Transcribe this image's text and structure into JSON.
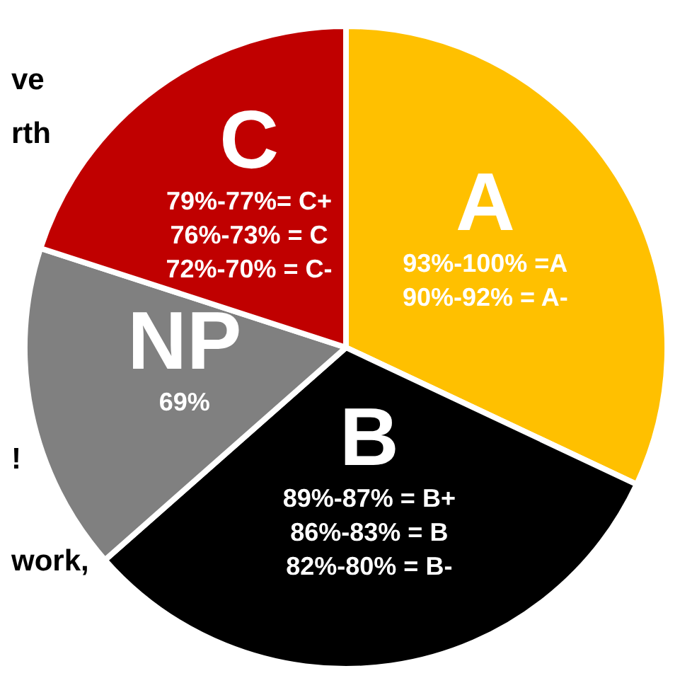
{
  "chart_data": {
    "type": "pie",
    "categories": [
      "A",
      "B",
      "NP",
      "C"
    ],
    "values": [
      32,
      31.5,
      16.5,
      20
    ],
    "colors": [
      "#ffc000",
      "#000000",
      "#808080",
      "#c00000"
    ],
    "annotations": [
      {
        "text": "93%-100% =A",
        "x": "A"
      },
      {
        "text": "90%-92% = A-",
        "x": "A"
      },
      {
        "text": "89%-87% = B+",
        "x": "B"
      },
      {
        "text": "86%-83% = B",
        "x": "B"
      },
      {
        "text": "82%-80% = B-",
        "x": "B"
      },
      {
        "text": "69%",
        "x": "NP"
      },
      {
        "text": "79%-77%= C+",
        "x": "C"
      },
      {
        "text": "76%-73% = C",
        "x": "C"
      },
      {
        "text": "72%-70% = C-",
        "x": "C"
      },
      "ve",
      "rth",
      "!",
      "work,"
    ],
    "legend": false
  }
}
